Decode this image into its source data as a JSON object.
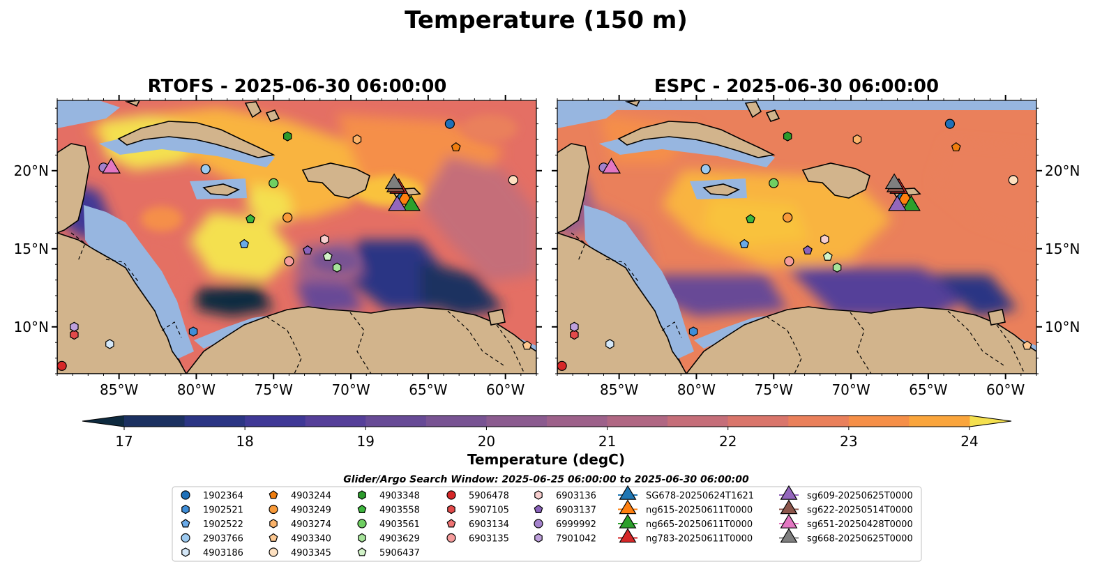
{
  "figure": {
    "suptitle": "Temperature (150 m)"
  },
  "panels": [
    {
      "title": "RTOFS - 2025-06-30 06:00:00",
      "model": "rtofs",
      "lat_ticks_side": "left"
    },
    {
      "title": "ESPC - 2025-06-30 06:00:00",
      "model": "espc",
      "lat_ticks_side": "right"
    }
  ],
  "map_extent": {
    "lon_min": -89,
    "lon_max": -58,
    "lat_min": 7,
    "lat_max": 24.5
  },
  "lon_ticks": [
    {
      "value": -85,
      "label": "85°W"
    },
    {
      "value": -80,
      "label": "80°W"
    },
    {
      "value": -75,
      "label": "75°W"
    },
    {
      "value": -70,
      "label": "70°W"
    },
    {
      "value": -65,
      "label": "65°W"
    },
    {
      "value": -60,
      "label": "60°W"
    }
  ],
  "lat_ticks": [
    {
      "value": 10,
      "label": "10°N"
    },
    {
      "value": 15,
      "label": "15°N"
    },
    {
      "value": 20,
      "label": "20°N"
    }
  ],
  "colorbar": {
    "label": "Temperature (degC)",
    "min": 16.5,
    "max": 24.5,
    "step": 0.5,
    "ticks": [
      {
        "value": 17,
        "label": "17"
      },
      {
        "value": 18,
        "label": "18"
      },
      {
        "value": 19,
        "label": "19"
      },
      {
        "value": 20,
        "label": "20"
      },
      {
        "value": 21,
        "label": "21"
      },
      {
        "value": 22,
        "label": "22"
      },
      {
        "value": 23,
        "label": "23"
      },
      {
        "value": 24,
        "label": "24"
      }
    ],
    "colors": [
      "#0e2a3f",
      "#1c3161",
      "#2b3584",
      "#3f3896",
      "#553f99",
      "#674a96",
      "#785393",
      "#8b5b8f",
      "#9d618a",
      "#b06783",
      "#c56e79",
      "#d9756b",
      "#ea805b",
      "#f58f48",
      "#faa53c",
      "#f9c23e",
      "#f4e04f"
    ]
  },
  "colors": {
    "land": "#d2b48c",
    "shelf": "#97b6e0",
    "coastline": "#000000",
    "pacific": "#0b2030"
  },
  "legend": {
    "title": "Glider/Argo Search Window: 2025-06-25 06:00:00 to 2025-06-30 06:00:00",
    "columns": [
      [
        {
          "label": "1902364",
          "marker": "circle",
          "color": "#1f70b8"
        },
        {
          "label": "1902521",
          "marker": "hexagon",
          "color": "#3f8ed8"
        },
        {
          "label": "1902522",
          "marker": "pentagon",
          "color": "#6aaae8"
        },
        {
          "label": "2903766",
          "marker": "circle",
          "color": "#9dcaf0"
        },
        {
          "label": "4903186",
          "marker": "hexagon",
          "color": "#d4e7f8"
        }
      ],
      [
        {
          "label": "4903244",
          "marker": "pentagon",
          "color": "#f07d0e"
        },
        {
          "label": "4903249",
          "marker": "circle",
          "color": "#f89a3a"
        },
        {
          "label": "4903274",
          "marker": "hexagon",
          "color": "#fbb36a"
        },
        {
          "label": "4903340",
          "marker": "pentagon",
          "color": "#fdc891"
        },
        {
          "label": "4903345",
          "marker": "circle",
          "color": "#fde0c0"
        }
      ],
      [
        {
          "label": "4903348",
          "marker": "hexagon",
          "color": "#2c9a2c"
        },
        {
          "label": "4903558",
          "marker": "pentagon",
          "color": "#3db63d"
        },
        {
          "label": "4903561",
          "marker": "circle",
          "color": "#6fcf62"
        },
        {
          "label": "4903629",
          "marker": "hexagon",
          "color": "#a6e39a"
        },
        {
          "label": "5906437",
          "marker": "pentagon",
          "color": "#d2f3c8"
        }
      ],
      [
        {
          "label": "5906478",
          "marker": "circle",
          "color": "#d62728"
        },
        {
          "label": "5907105",
          "marker": "hexagon",
          "color": "#e34a4a"
        },
        {
          "label": "6903134",
          "marker": "pentagon",
          "color": "#ef7373"
        },
        {
          "label": "6903135",
          "marker": "circle",
          "color": "#f59c9c"
        }
      ],
      [
        {
          "label": "6903136",
          "marker": "hexagon",
          "color": "#f8cfcf"
        },
        {
          "label": "6903137",
          "marker": "pentagon",
          "color": "#8a63bb"
        },
        {
          "label": "6999992",
          "marker": "circle",
          "color": "#a482cc"
        },
        {
          "label": "7901042",
          "marker": "hexagon",
          "color": "#bea0dc"
        }
      ],
      [
        {
          "label": "SG678-20250624T1621",
          "marker": "triangle",
          "color": "#1f77b4"
        },
        {
          "label": "ng615-20250611T0000",
          "marker": "triangle",
          "color": "#ff7f0e"
        },
        {
          "label": "ng665-20250611T0000",
          "marker": "triangle",
          "color": "#2ca02c"
        },
        {
          "label": "ng783-20250611T0000",
          "marker": "triangle",
          "color": "#d62728"
        }
      ],
      [
        {
          "label": "sg609-20250625T0000",
          "marker": "triangle",
          "color": "#9467bd"
        },
        {
          "label": "sg622-20250514T0000",
          "marker": "triangle",
          "color": "#8c564b"
        },
        {
          "label": "sg651-20250428T0000",
          "marker": "triangle",
          "color": "#e377c2"
        },
        {
          "label": "sg668-20250625T0000",
          "marker": "triangle",
          "color": "#7f7f7f"
        }
      ]
    ]
  },
  "observations": [
    {
      "id": "1902364",
      "lon": -63.6,
      "lat": 23.0
    },
    {
      "id": "1902521",
      "lon": -80.2,
      "lat": 9.7
    },
    {
      "id": "1902522",
      "lon": -76.9,
      "lat": 15.3
    },
    {
      "id": "2903766",
      "lon": -79.4,
      "lat": 20.1
    },
    {
      "id": "4903186",
      "lon": -85.6,
      "lat": 8.9
    },
    {
      "id": "4903244",
      "lon": -63.2,
      "lat": 21.5
    },
    {
      "id": "4903249",
      "lon": -74.1,
      "lat": 17.0
    },
    {
      "id": "4903274",
      "lon": -69.6,
      "lat": 22.0
    },
    {
      "id": "4903340",
      "lon": -58.6,
      "lat": 8.8
    },
    {
      "id": "4903345",
      "lon": -59.5,
      "lat": 19.4
    },
    {
      "id": "4903348",
      "lon": -74.1,
      "lat": 22.2
    },
    {
      "id": "4903558",
      "lon": -76.5,
      "lat": 16.9
    },
    {
      "id": "4903561",
      "lon": -75.0,
      "lat": 19.2
    },
    {
      "id": "4903629",
      "lon": -70.9,
      "lat": 13.8
    },
    {
      "id": "5906437",
      "lon": -71.5,
      "lat": 14.5
    },
    {
      "id": "5906478",
      "lon": -88.7,
      "lat": 7.5
    },
    {
      "id": "5907105",
      "lon": -87.9,
      "lat": 9.5
    },
    {
      "id": "6903134",
      "lon": -66.7,
      "lat": 18.1
    },
    {
      "id": "6903135",
      "lon": -74.0,
      "lat": 14.2
    },
    {
      "id": "6903136",
      "lon": -71.7,
      "lat": 15.6
    },
    {
      "id": "6903137",
      "lon": -72.8,
      "lat": 14.9
    },
    {
      "id": "6999992",
      "lon": -86.0,
      "lat": 20.2
    },
    {
      "id": "7901042",
      "lon": -87.9,
      "lat": 10.0
    },
    {
      "id": "SG678-20250624T1621",
      "lon": -66.6,
      "lat": 18.4
    },
    {
      "id": "ng615-20250611T0000",
      "lon": -66.5,
      "lat": 18.2
    },
    {
      "id": "ng665-20250611T0000",
      "lon": -66.1,
      "lat": 17.8
    },
    {
      "id": "ng783-20250611T0000",
      "lon": -66.9,
      "lat": 18.9
    },
    {
      "id": "sg609-20250625T0000",
      "lon": -67.0,
      "lat": 17.8
    },
    {
      "id": "sg622-20250514T0000",
      "lon": -67.1,
      "lat": 19.0
    },
    {
      "id": "sg651-20250428T0000",
      "lon": -85.5,
      "lat": 20.2
    },
    {
      "id": "sg668-20250625T0000",
      "lon": -67.2,
      "lat": 19.2
    }
  ]
}
